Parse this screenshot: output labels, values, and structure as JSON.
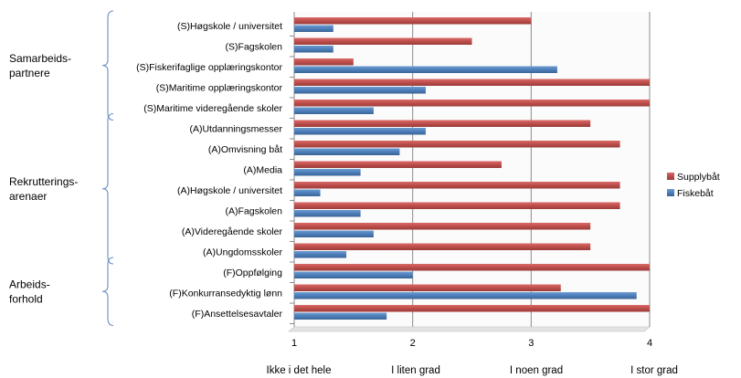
{
  "chart_data": {
    "type": "bar",
    "orientation": "horizontal",
    "categories": [
      "(S)Høgskole / universitet",
      "(S)Fagskolen",
      "(S)Fiskerifaglige opplæringskontor",
      "(S)Maritime opplæringskontor",
      "(S)Maritime videregående skoler",
      "(A)Utdanningsmesser",
      "(A)Omvisning båt",
      "(A)Media",
      "(A)Høgskole / universitet",
      "(A)Fagskolen",
      "(A)Videregående skoler",
      "(A)Ungdomsskoler",
      "(F)Oppfølging",
      "(F)Konkurransedyktig lønn",
      "(F)Ansettelsesavtaler"
    ],
    "series": [
      {
        "name": "Supplybåt",
        "color": "#c0504d",
        "values": [
          3.0,
          2.5,
          1.5,
          4.0,
          4.0,
          3.5,
          3.75,
          2.75,
          3.75,
          3.75,
          3.5,
          3.5,
          4.0,
          3.25,
          4.0
        ]
      },
      {
        "name": "Fiskebåt",
        "color": "#4f81bd",
        "values": [
          1.33,
          1.33,
          3.22,
          2.11,
          1.67,
          2.11,
          1.89,
          1.56,
          1.22,
          1.56,
          1.67,
          1.44,
          2.0,
          3.89,
          1.78
        ]
      }
    ],
    "xlim": [
      1,
      4
    ],
    "x_ticks": [
      "1",
      "2",
      "3",
      "4"
    ],
    "scale_labels": [
      "Ikke i det hele",
      "I liten grad",
      "I noen grad",
      "I stor grad"
    ],
    "groups": [
      {
        "label_lines": [
          "Samarbeids-",
          "partnere"
        ],
        "first_index": 0,
        "last_index": 4
      },
      {
        "label_lines": [
          "Rekrutterings-",
          "arenaer"
        ],
        "first_index": 5,
        "last_index": 11
      },
      {
        "label_lines": [
          "Arbeids-",
          "forhold"
        ],
        "first_index": 12,
        "last_index": 14
      }
    ],
    "legend_position": "right",
    "grid": true,
    "title": "",
    "xlabel": "",
    "ylabel": ""
  }
}
